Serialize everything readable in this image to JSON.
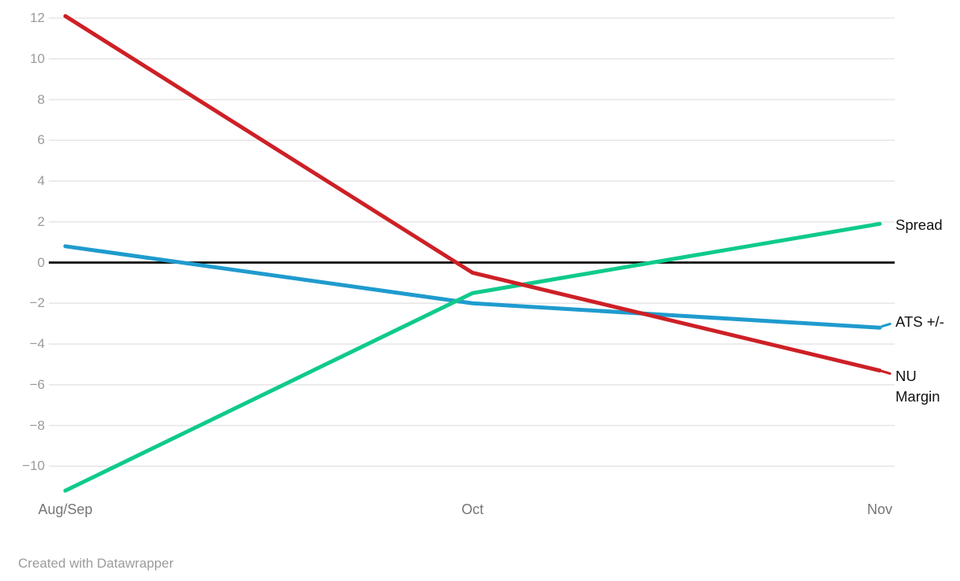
{
  "chart_data": {
    "type": "line",
    "title": "",
    "xlabel": "",
    "ylabel": "",
    "categories": [
      "Aug/Sep",
      "Oct",
      "Nov"
    ],
    "series": [
      {
        "name": "Spread",
        "color": "#0fca8b",
        "values": [
          -11.2,
          -1.5,
          1.9
        ]
      },
      {
        "name": "ATS +/-",
        "color": "#1f9bce",
        "values": [
          0.8,
          -2.0,
          -3.2
        ]
      },
      {
        "name": "NU Margin",
        "color": "#cd2026",
        "values": [
          12.1,
          -0.5,
          -5.3
        ]
      }
    ],
    "y_ticks": [
      12,
      10,
      8,
      6,
      4,
      2,
      0,
      -2,
      -4,
      -6,
      -8,
      -10
    ],
    "ylim": [
      -11.5,
      12.3
    ],
    "grid": true,
    "zero_line": true,
    "legend_position": "right-end-labels"
  },
  "footer": {
    "credit": "Created with Datawrapper"
  },
  "colors": {
    "background": "#ffffff",
    "grid": "#e6e6e6",
    "zero_line": "#000000",
    "y_tick_text": "#9a9a9a",
    "x_tick_text": "#757575",
    "series_label_text": "#111111",
    "footer_text": "#9b9b9b"
  }
}
